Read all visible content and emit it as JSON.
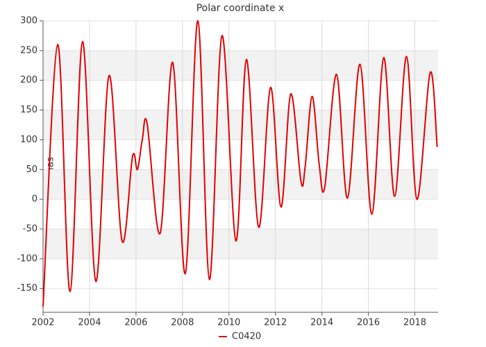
{
  "chart_data": {
    "type": "line",
    "title": "Polar coordinate x",
    "y_label": "mas",
    "x": [
      2002.0,
      2002.63,
      2003.16,
      2003.7,
      2004.27,
      2004.84,
      2005.4,
      2005.85,
      2006.06,
      2006.27,
      2006.48,
      2007.04,
      2007.58,
      2008.12,
      2008.66,
      2009.16,
      2009.7,
      2010.3,
      2010.75,
      2011.28,
      2011.79,
      2012.24,
      2012.66,
      2013.1,
      2013.28,
      2013.58,
      2013.88,
      2014.12,
      2014.63,
      2015.1,
      2015.64,
      2016.15,
      2016.66,
      2017.13,
      2017.64,
      2018.09,
      2018.66,
      2018.96
    ],
    "series": [
      {
        "name": "C0420",
        "color": "#e00000",
        "values": [
          -180,
          260,
          -155,
          265,
          -138,
          208,
          -70,
          72,
          50,
          100,
          127,
          -57,
          230,
          -125,
          300,
          -135,
          275,
          -70,
          235,
          -47,
          188,
          -13,
          177,
          30,
          55,
          173,
          60,
          20,
          210,
          2,
          227,
          -25,
          238,
          5,
          240,
          0,
          213,
          88
        ]
      }
    ],
    "xlim": [
      2002,
      2019
    ],
    "xticks": [
      2002,
      2004,
      2006,
      2008,
      2010,
      2012,
      2014,
      2016,
      2018
    ],
    "ylim": [
      -190,
      300
    ],
    "yticks": [
      -150,
      -100,
      -50,
      0,
      50,
      100,
      150,
      200,
      250,
      300
    ],
    "grid": true
  }
}
